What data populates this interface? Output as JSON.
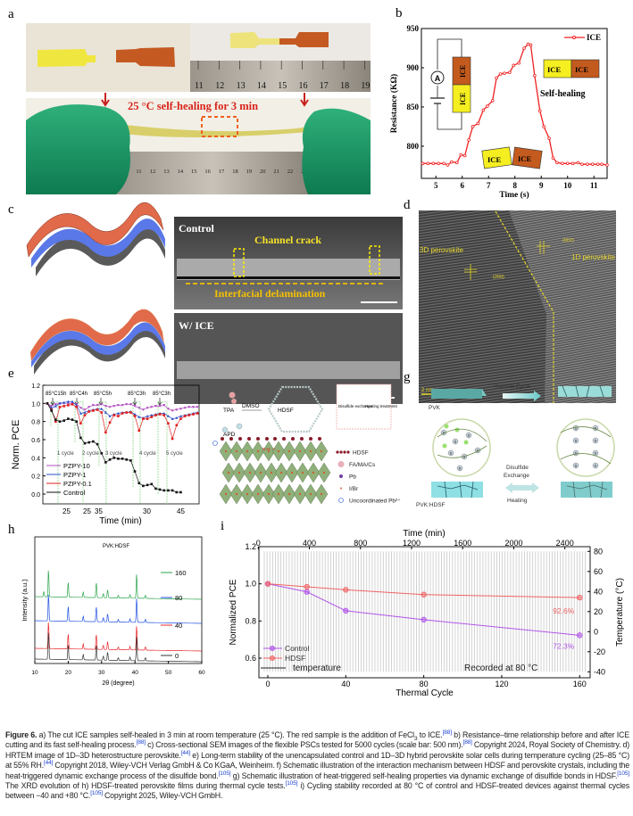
{
  "panel_labels": {
    "a": "a",
    "b": "b",
    "c": "c",
    "d": "d",
    "e": "e",
    "f": "f",
    "g": "g",
    "h": "h",
    "i": "i"
  },
  "panel_a": {
    "caption_text": "25 °C self-healing for 3 min",
    "ruler_top_ticks": [
      "11",
      "12",
      "13",
      "14",
      "15",
      "16",
      "17",
      "18",
      "19"
    ],
    "ruler_bottom_ticks": [
      "10",
      "11",
      "12",
      "13",
      "14",
      "15",
      "16",
      "17",
      "18",
      "19",
      "20",
      "21",
      "22",
      "23",
      "24"
    ]
  },
  "panel_c": {
    "control_label": "Control",
    "channel_crack": "Channel crack",
    "interfacial": "Interfacial delamination",
    "wice_label": "W/ ICE"
  },
  "panel_d": {
    "label_3d": "3D perovskite",
    "label_1d": "1D perovskite",
    "plane_200": "(200)",
    "plane_002": "(002)",
    "scale": "2 nm"
  },
  "panel_f": {
    "tpa": "TPA",
    "apd": "APD",
    "dmso": "DMSO",
    "hdsf": "HDSF",
    "disulfide": "Disulfide exchange",
    "heating": "Heating treatment",
    "hbond": "N-H···I",
    "legend": [
      "HDSF",
      "FA/MA/Cs",
      "Pb",
      "I/Br",
      "Uncoordinated Pb²⁺"
    ]
  },
  "panel_g": {
    "thermal_cycle": "Thermal Cycle",
    "pvk": "PVK",
    "pvk_hdsf": "PVK:HDSF",
    "disulfide": "Disulfide",
    "exchange": "Exchange",
    "heating": "Heating",
    "s_atom": "S"
  },
  "colors": {
    "red": "#e8242a",
    "purple": "#b056e8",
    "hdsf": "#f06464",
    "green": "#2aa44a",
    "blue": "#2050e0",
    "yellow": "#f5e22a",
    "ice_orange": "#c35a1e"
  },
  "chart_data": [
    {
      "id": "b",
      "type": "line",
      "title": "",
      "xlabel": "Time (s)",
      "ylabel": "Resistance (KΩ)",
      "xlim": [
        4.45,
        11.5
      ],
      "ylim": [
        759,
        950
      ],
      "xticks": [
        5,
        6,
        7,
        8,
        9,
        10,
        11
      ],
      "yticks": [
        800,
        850,
        900,
        950
      ],
      "legend": "ICE",
      "annotations": [
        "ICE",
        "ICE",
        "Self-healing",
        "A"
      ],
      "series": [
        {
          "name": "ICE",
          "x": [
            4.5,
            4.7,
            4.9,
            5.1,
            5.3,
            5.45,
            5.6,
            5.8,
            5.95,
            6.1,
            6.25,
            6.4,
            6.6,
            6.8,
            6.95,
            7.15,
            7.3,
            7.45,
            7.6,
            7.8,
            7.95,
            8.15,
            8.35,
            8.5,
            8.6,
            8.75,
            8.95,
            9.1,
            9.3,
            9.45,
            9.6,
            9.8,
            10.0,
            10.2,
            10.4,
            10.55,
            10.75,
            10.95,
            11.15,
            11.3,
            11.5
          ],
          "y": [
            778,
            778,
            778,
            778,
            778,
            776,
            780,
            779,
            789,
            788,
            808,
            825,
            829,
            846,
            851,
            858,
            887,
            892,
            893,
            894,
            903,
            906,
            925,
            930,
            929,
            890,
            845,
            825,
            810,
            785,
            779,
            778,
            778,
            778,
            779,
            777,
            777,
            777,
            777,
            777,
            776
          ]
        }
      ]
    },
    {
      "id": "e",
      "type": "line",
      "xlabel": "Time (min)",
      "ylabel": "Norm. PCE",
      "ylim": [
        -0.1,
        1.2
      ],
      "yticks": [
        0.0,
        0.2,
        0.4,
        0.6,
        0.8,
        1.0,
        1.2
      ],
      "xtick_labels": [
        "25",
        "25",
        "35",
        "30",
        "45"
      ],
      "heat_labels": [
        "85°C15h",
        "85°C4h",
        "85°C5h",
        "85°C3h",
        "85°C3h"
      ],
      "cycle_labels": [
        "1 cycle",
        "2 cycle",
        "3 cycle",
        "4 cycle",
        "5 cycle"
      ],
      "series": [
        {
          "name": "PZPY-10",
          "color": "#b04cc0",
          "y": [
            1.0,
            0.97,
            0.99,
            1.0,
            1.0,
            1.0,
            1.0,
            0.99,
            0.95,
            0.93,
            0.96,
            0.98,
            0.98,
            0.99,
            0.97,
            0.96,
            0.97,
            0.98,
            0.98,
            0.99,
            0.99,
            0.97,
            0.95,
            0.93,
            0.95,
            0.96,
            0.97,
            0.97,
            0.98,
            0.94,
            0.92,
            0.93,
            0.94,
            0.95,
            0.96,
            0.96,
            0.96
          ]
        },
        {
          "name": "PZPY-1",
          "color": "#2a4cc8",
          "y": [
            1.0,
            0.95,
            0.97,
            1.0,
            1.01,
            1.02,
            1.02,
            0.98,
            0.89,
            0.9,
            0.92,
            0.93,
            0.94,
            0.94,
            0.9,
            0.86,
            0.88,
            0.89,
            0.9,
            0.9,
            0.91,
            0.88,
            0.85,
            0.84,
            0.86,
            0.87,
            0.88,
            0.89,
            0.89,
            0.86,
            0.83,
            0.84,
            0.86,
            0.87,
            0.88,
            0.89,
            0.9
          ]
        },
        {
          "name": "PZPY-0.1",
          "color": "#e02020",
          "y": [
            1.0,
            0.93,
            0.8,
            0.96,
            0.97,
            0.98,
            0.99,
            0.96,
            0.78,
            0.87,
            0.91,
            0.92,
            0.93,
            0.9,
            0.68,
            0.79,
            0.87,
            0.86,
            0.89,
            0.9,
            0.9,
            0.86,
            0.7,
            0.83,
            0.83,
            0.85,
            0.87,
            0.88,
            0.87,
            0.78,
            0.61,
            0.76,
            0.83,
            0.86,
            0.87,
            0.88,
            0.89
          ]
        },
        {
          "name": "Control",
          "color": "#111111",
          "y": [
            1.0,
            0.92,
            0.82,
            0.8,
            0.81,
            0.83,
            0.82,
            0.8,
            0.62,
            0.56,
            0.57,
            0.58,
            0.55,
            0.45,
            0.35,
            0.38,
            0.4,
            0.39,
            0.39,
            0.38,
            0.37,
            0.25,
            0.12,
            0.09,
            0.1,
            0.11,
            0.06,
            0.05,
            0.04,
            0.04,
            0.04,
            0.02,
            0.02
          ]
        }
      ]
    },
    {
      "id": "h",
      "type": "line",
      "title": "PVK:HDSF",
      "xlabel": "2θ (degree)",
      "ylabel": "Intensity (a.u.)",
      "xlim": [
        10,
        60
      ],
      "xticks": [
        10,
        20,
        30,
        40,
        50,
        60
      ],
      "peaks_2theta": [
        14.1,
        20.0,
        24.5,
        28.4,
        30.5,
        31.8,
        35.0,
        38.5,
        40.5,
        43.1
      ],
      "peak_heights": [
        1.0,
        0.55,
        0.2,
        0.55,
        0.15,
        0.3,
        0.1,
        0.12,
        0.9,
        0.12
      ],
      "series": [
        {
          "name": "160",
          "color": "#2aa44a",
          "extra_peak_2theta": 12.7
        },
        {
          "name": "80",
          "color": "#2050e0"
        },
        {
          "name": "40",
          "color": "#e8242a"
        },
        {
          "name": "0",
          "color": "#333333"
        }
      ]
    },
    {
      "id": "i",
      "type": "line",
      "xlabel": "Thermal Cycle",
      "ylabel": "Normalized PCE",
      "x2label": "Time (min)",
      "y2label": "Temperature (°C)",
      "xlim": [
        -5,
        163
      ],
      "ylim": [
        0.495,
        1.2
      ],
      "y2lim": [
        -46,
        82
      ],
      "x2lim": [
        0,
        2600
      ],
      "xticks": [
        0,
        40,
        80,
        120,
        160
      ],
      "yticks": [
        0.6,
        0.8,
        1.0,
        1.2
      ],
      "x2ticks": [
        0,
        400,
        800,
        1200,
        1600,
        2000,
        2400
      ],
      "y2ticks": [
        -40,
        -20,
        0,
        20,
        40,
        60,
        80
      ],
      "temperature_range": [
        -40,
        80
      ],
      "annotation": "Recorded at 80 °C",
      "legend": [
        "Control",
        "HDSF",
        "temperature"
      ],
      "series": [
        {
          "name": "Control",
          "color": "#b056e8",
          "x": [
            0,
            20,
            40,
            80,
            160
          ],
          "y": [
            1.0,
            0.957,
            0.855,
            0.807,
            0.723
          ],
          "end_label": "72.3%"
        },
        {
          "name": "HDSF",
          "color": "#f06464",
          "x": [
            0,
            20,
            40,
            80,
            160
          ],
          "y": [
            1.0,
            0.984,
            0.968,
            0.942,
            0.926
          ],
          "end_label": "92.6%"
        }
      ]
    }
  ],
  "caption": {
    "figure_label": "Figure 6.",
    "parts": [
      {
        "t": " a) The cut ICE samples self-healed in 3 min at room temperature (25 °C). The red sample is the addition of FeCl"
      },
      {
        "sub": "3"
      },
      {
        "t": " to ICE."
      },
      {
        "ref": "[88]"
      },
      {
        "t": " b) Resistance–time relationship before and after ICE cutting and its fast self-healing process."
      },
      {
        "ref": "[88]"
      },
      {
        "t": " c) Cross-sectional SEM images of the flexible PSCs tested for 5000 cycles (scale bar: 500 nm)."
      },
      {
        "ref": "[88]"
      },
      {
        "t": " Copyright 2024, Royal Society of Chemistry. d) HRTEM image of 1D–3D heterostructure perovskite."
      },
      {
        "ref": "[44]"
      },
      {
        "t": " e) Long-term stability of the unencapsulated control and 1D–3D hybrid perovskite solar cells during temperature cycling (25–85 °C) at 55% RH."
      },
      {
        "ref": "[44]"
      },
      {
        "t": " Copyright 2018, Wiley-VCH Verlag GmbH & Co KGaA, Weinheim. f) Schematic illustration of the interaction mechanism between HDSF and perovskite crystals, including the heat-triggered dynamic exchange process of the disulfide bond."
      },
      {
        "ref": "[105]"
      },
      {
        "t": " g) Schematic illustration of heat-triggered self-healing properties via dynamic exchange of disulfide bonds in HDSF."
      },
      {
        "ref": "[105]"
      },
      {
        "t": " The XRD evolution of h) HDSF-treated perovskite films during thermal cycle tests."
      },
      {
        "ref": "[105]"
      },
      {
        "t": " i) Cycling stability recorded at 80 °C of control and HDSF-treated devices against thermal cycles between −40 and +80 °C."
      },
      {
        "ref": "[105]"
      },
      {
        "t": " Copyright 2025, Wiley-VCH GmbH."
      }
    ]
  }
}
